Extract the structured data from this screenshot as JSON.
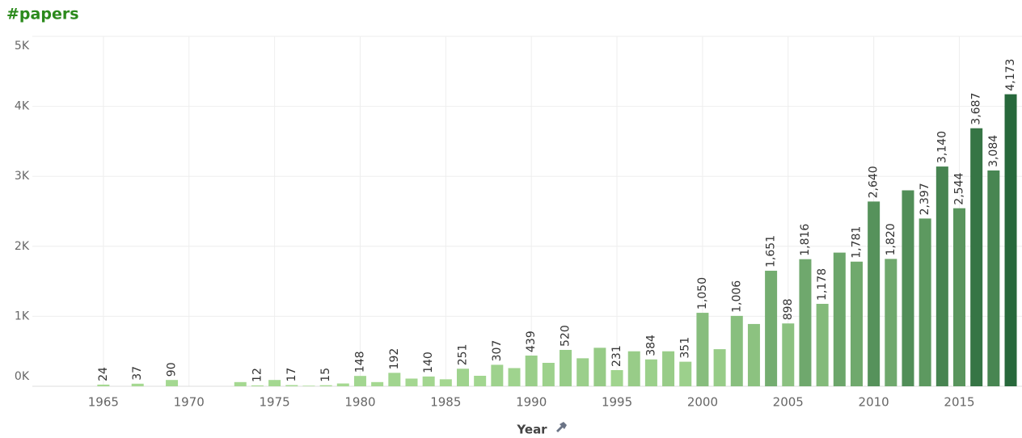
{
  "chart_data": {
    "type": "bar",
    "title": "#papers",
    "x_label": "Year",
    "x": [
      1965,
      1967,
      1969,
      1973,
      1974,
      1975,
      1976,
      1977,
      1978,
      1979,
      1980,
      1981,
      1982,
      1983,
      1984,
      1985,
      1986,
      1987,
      1988,
      1989,
      1990,
      1991,
      1992,
      1993,
      1994,
      1995,
      1996,
      1997,
      1998,
      1999,
      2000,
      2001,
      2002,
      2003,
      2004,
      2005,
      2006,
      2007,
      2008,
      2009,
      2010,
      2011,
      2012,
      2013,
      2014,
      2015,
      2016,
      2017,
      2018
    ],
    "values": [
      24,
      37,
      90,
      60,
      12,
      90,
      17,
      8,
      15,
      40,
      148,
      60,
      192,
      110,
      140,
      100,
      251,
      150,
      307,
      260,
      439,
      335,
      520,
      400,
      550,
      231,
      500,
      384,
      500,
      351,
      1050,
      530,
      1006,
      890,
      1651,
      898,
      1816,
      1178,
      1910,
      1781,
      2640,
      1820,
      2800,
      2397,
      3140,
      2544,
      3687,
      3084,
      4173
    ],
    "value_labels": [
      "24",
      "37",
      "90",
      null,
      "12",
      null,
      "17",
      null,
      "15",
      null,
      "148",
      null,
      "192",
      null,
      "140",
      null,
      "251",
      null,
      "307",
      null,
      "439",
      null,
      "520",
      null,
      null,
      "231",
      null,
      "384",
      null,
      "351",
      "1,050",
      null,
      "1,006",
      null,
      "1,651",
      "898",
      "1,816",
      "1,178",
      null,
      "1,781",
      "2,640",
      "1,820",
      null,
      "2,397",
      "3,140",
      "2,544",
      "3,687",
      "3,084",
      "4,173"
    ],
    "color_range": [
      "#a7da93",
      "#27683b"
    ],
    "xlim": [
      1960.85,
      2018.66
    ],
    "xticks": [
      1965,
      1970,
      1975,
      1980,
      1985,
      1990,
      1995,
      2000,
      2005,
      2010,
      2015
    ],
    "ylim": [
      0,
      5000
    ],
    "yticks": [
      {
        "value": 0,
        "label": "0K"
      },
      {
        "value": 1000,
        "label": "1K"
      },
      {
        "value": 2000,
        "label": "2K"
      },
      {
        "value": 3000,
        "label": "3K"
      },
      {
        "value": 4000,
        "label": "4K"
      },
      {
        "value": 5000,
        "label": "5K"
      }
    ],
    "grid": true
  }
}
